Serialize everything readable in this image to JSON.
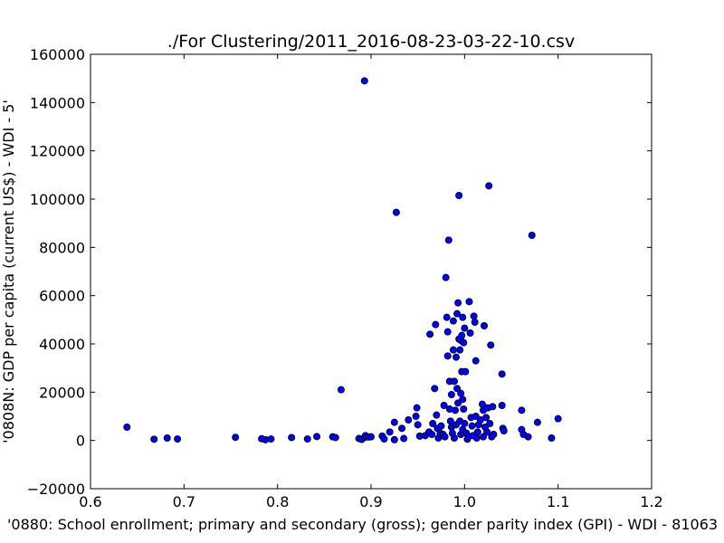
{
  "chart_data": {
    "type": "scatter",
    "title": "./For Clustering/2011_2016-08-23-03-22-10.csv",
    "xlabel": "'0880: School enrollment; primary and secondary (gross); gender parity index  (GPI) - WDI - 81063",
    "ylabel": "'0808N: GDP per capita  (current US$) - WDI - 5'",
    "xlim": [
      0.6,
      1.2
    ],
    "ylim": [
      -20000,
      160000
    ],
    "xticks": [
      "0.6",
      "0.7",
      "0.8",
      "0.9",
      "1.0",
      "1.1",
      "1.2"
    ],
    "yticks": [
      "−20000",
      "0",
      "20000",
      "40000",
      "60000",
      "80000",
      "100000",
      "120000",
      "140000",
      "160000"
    ],
    "grid": false,
    "marker_color": "#0000ff",
    "points": [
      [
        0.639,
        5500
      ],
      [
        0.668,
        500
      ],
      [
        0.682,
        1000
      ],
      [
        0.693,
        600
      ],
      [
        0.755,
        1300
      ],
      [
        0.783,
        700
      ],
      [
        0.787,
        300
      ],
      [
        0.793,
        600
      ],
      [
        0.815,
        1200
      ],
      [
        0.832,
        600
      ],
      [
        0.842,
        1600
      ],
      [
        0.859,
        1500
      ],
      [
        0.862,
        1200
      ],
      [
        0.868,
        21000
      ],
      [
        0.887,
        800
      ],
      [
        0.89,
        400
      ],
      [
        0.893,
        1200
      ],
      [
        0.894,
        2000
      ],
      [
        0.897,
        1400
      ],
      [
        0.9,
        1500
      ],
      [
        0.893,
        149000
      ],
      [
        0.912,
        1800
      ],
      [
        0.914,
        600
      ],
      [
        0.92,
        3500
      ],
      [
        0.925,
        7500
      ],
      [
        0.925,
        300
      ],
      [
        0.927,
        94500
      ],
      [
        0.933,
        5000
      ],
      [
        0.935,
        800
      ],
      [
        0.94,
        8500
      ],
      [
        0.948,
        10000
      ],
      [
        0.949,
        13500
      ],
      [
        0.95,
        6500
      ],
      [
        0.952,
        1800
      ],
      [
        0.958,
        2000
      ],
      [
        0.962,
        3500
      ],
      [
        0.963,
        44000
      ],
      [
        0.965,
        2500
      ],
      [
        0.966,
        7000
      ],
      [
        0.968,
        21500
      ],
      [
        0.969,
        48000
      ],
      [
        0.97,
        10500
      ],
      [
        0.971,
        5000
      ],
      [
        0.972,
        1000
      ],
      [
        0.974,
        3000
      ],
      [
        0.975,
        6000
      ],
      [
        0.977,
        2500
      ],
      [
        0.978,
        14500
      ],
      [
        0.979,
        1500
      ],
      [
        0.98,
        67500
      ],
      [
        0.981,
        51000
      ],
      [
        0.982,
        35000
      ],
      [
        0.982,
        45000
      ],
      [
        0.983,
        83000
      ],
      [
        0.984,
        13000
      ],
      [
        0.984,
        24500
      ],
      [
        0.985,
        8000
      ],
      [
        0.986,
        19000
      ],
      [
        0.986,
        5500
      ],
      [
        0.987,
        3000
      ],
      [
        0.988,
        49500
      ],
      [
        0.988,
        37500
      ],
      [
        0.989,
        24500
      ],
      [
        0.989,
        1000
      ],
      [
        0.99,
        12500
      ],
      [
        0.991,
        34500
      ],
      [
        0.991,
        6500
      ],
      [
        0.992,
        52500
      ],
      [
        0.992,
        21500
      ],
      [
        0.993,
        57000
      ],
      [
        0.993,
        15500
      ],
      [
        0.994,
        101500
      ],
      [
        0.994,
        42000
      ],
      [
        0.995,
        37500
      ],
      [
        0.995,
        8000
      ],
      [
        0.996,
        41500
      ],
      [
        0.996,
        19500
      ],
      [
        0.996,
        2500
      ],
      [
        0.997,
        43500
      ],
      [
        0.997,
        28500
      ],
      [
        0.998,
        51000
      ],
      [
        0.998,
        17000
      ],
      [
        0.998,
        4500
      ],
      [
        0.999,
        40500
      ],
      [
        0.999,
        13000
      ],
      [
        1.0,
        46500
      ],
      [
        1.0,
        7000
      ],
      [
        1.001,
        28500
      ],
      [
        1.002,
        3000
      ],
      [
        1.003,
        500
      ],
      [
        1.004,
        1500
      ],
      [
        1.005,
        57500
      ],
      [
        1.006,
        44500
      ],
      [
        1.007,
        9500
      ],
      [
        1.008,
        6000
      ],
      [
        1.009,
        2000
      ],
      [
        1.01,
        51500
      ],
      [
        1.011,
        49000
      ],
      [
        1.012,
        33000
      ],
      [
        1.012,
        10000
      ],
      [
        1.013,
        1000
      ],
      [
        1.014,
        3500
      ],
      [
        1.015,
        6500
      ],
      [
        1.017,
        8500
      ],
      [
        1.019,
        15000
      ],
      [
        1.02,
        12500
      ],
      [
        1.02,
        1500
      ],
      [
        1.021,
        47500
      ],
      [
        1.022,
        5500
      ],
      [
        1.023,
        9500
      ],
      [
        1.024,
        3500
      ],
      [
        1.025,
        13500
      ],
      [
        1.026,
        105500
      ],
      [
        1.027,
        7000
      ],
      [
        1.028,
        39500
      ],
      [
        1.029,
        1500
      ],
      [
        1.03,
        14000
      ],
      [
        1.031,
        2500
      ],
      [
        1.04,
        27500
      ],
      [
        1.04,
        14500
      ],
      [
        1.041,
        5000
      ],
      [
        1.042,
        4000
      ],
      [
        1.061,
        12500
      ],
      [
        1.061,
        4500
      ],
      [
        1.063,
        2500
      ],
      [
        1.068,
        1500
      ],
      [
        1.072,
        85000
      ],
      [
        1.078,
        7500
      ],
      [
        1.093,
        1000
      ],
      [
        1.1,
        9000
      ]
    ]
  }
}
